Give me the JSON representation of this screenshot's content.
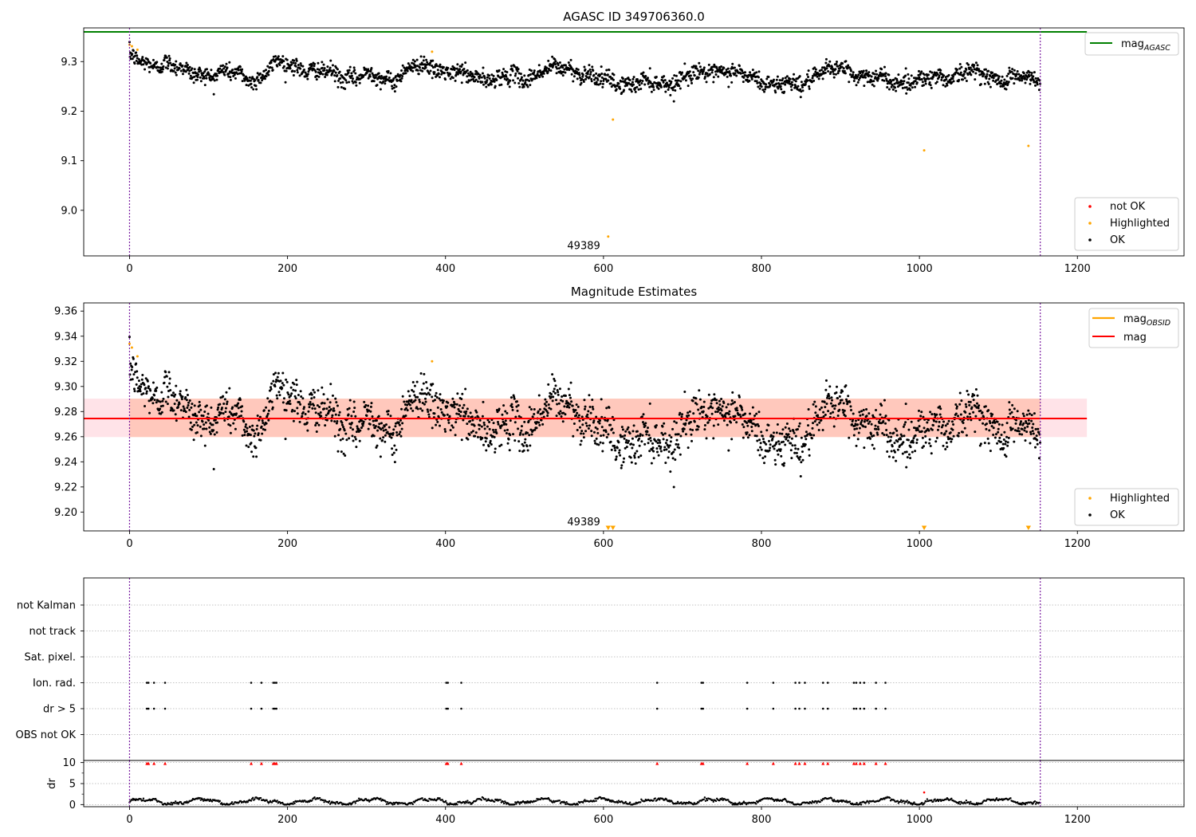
{
  "chart_data": [
    {
      "type": "scatter",
      "title": "AGASC ID 349706360.0",
      "xlim": [
        -58,
        1335
      ],
      "ylim": [
        8.908,
        9.368
      ],
      "xticks": [
        0,
        200,
        400,
        600,
        800,
        1000,
        1200
      ],
      "yticks": [
        9.0,
        9.1,
        9.2,
        9.3
      ],
      "ytick_labels": [
        "9.0",
        "9.1",
        "9.2",
        "9.3"
      ],
      "grid": false,
      "vlines": [
        0,
        1153
      ],
      "obsid_label": {
        "text": "49389",
        "x": 575,
        "y": 8.928
      },
      "agasc_mag": 9.36,
      "agasc_mag_x": [
        -58,
        1212
      ],
      "series": [
        {
          "name": "Highlighted",
          "color": "#ffa500",
          "points": [
            [
              0,
              9.334
            ],
            [
              3,
              9.331
            ],
            [
              10,
              9.324
            ],
            [
              383,
              9.32
            ],
            [
              606,
              8.947
            ],
            [
              612,
              9.183
            ],
            [
              1006,
              9.121
            ],
            [
              1138,
              9.13
            ]
          ]
        }
      ],
      "ok_series": {
        "name": "OK",
        "color": "#000000"
      },
      "legend_markers": {
        "placement": "lower-right",
        "entries": [
          {
            "label": "not OK",
            "color": "#ff0000"
          },
          {
            "label": "Highlighted",
            "color": "#ffa500"
          },
          {
            "label": "OK",
            "color": "#000000"
          }
        ]
      },
      "legend_lines": {
        "placement": "upper-right",
        "entries": [
          {
            "label": "mag",
            "sub": "AGASC",
            "color": "#008000"
          }
        ]
      }
    },
    {
      "type": "scatter",
      "title": "Magnitude Estimates",
      "xlim": [
        -58,
        1335
      ],
      "ylim": [
        9.185,
        9.3665
      ],
      "xticks": [
        0,
        200,
        400,
        600,
        800,
        1000,
        1200
      ],
      "yticks": [
        9.2,
        9.22,
        9.24,
        9.26,
        9.28,
        9.3,
        9.32,
        9.34,
        9.36
      ],
      "ytick_labels": [
        "9.20",
        "9.22",
        "9.24",
        "9.26",
        "9.28",
        "9.30",
        "9.32",
        "9.34",
        "9.36"
      ],
      "grid": false,
      "vlines": [
        0,
        1153
      ],
      "obsid_label": {
        "text": "49389",
        "x": 575,
        "y": 9.19
      },
      "mean_mag": 9.2745,
      "mean_band": [
        9.2597,
        9.2903
      ],
      "obsid_mag": 9.2745,
      "obsid_band": [
        9.2597,
        9.2903
      ],
      "band_x": [
        -58,
        1212
      ],
      "obsid_x": [
        0,
        1153
      ],
      "series": [
        {
          "name": "Highlighted",
          "color": "#ffa500",
          "points": [
            [
              0,
              9.334
            ],
            [
              3,
              9.331
            ],
            [
              10,
              9.324
            ],
            [
              383,
              9.32
            ]
          ]
        }
      ],
      "off_scale_markers": [
        606,
        612,
        1006,
        1138
      ],
      "ok_series": {
        "name": "OK",
        "color": "#000000"
      },
      "legend_markers": {
        "placement": "lower-right",
        "entries": [
          {
            "label": "Highlighted",
            "color": "#ffa500"
          },
          {
            "label": "OK",
            "color": "#000000"
          }
        ]
      },
      "legend_lines": {
        "placement": "upper-right",
        "entries": [
          {
            "label": "mag",
            "sub": "OBSID",
            "color": "#ffa500"
          },
          {
            "label": "mag",
            "sub": "",
            "color": "#ff0000"
          }
        ]
      }
    },
    {
      "type": "scatter",
      "title": "",
      "xlim": [
        -58,
        1335
      ],
      "xticks": [
        0,
        200,
        400,
        600,
        800,
        1000,
        1200
      ],
      "vlines": [
        0,
        1153
      ],
      "flag_rows": [
        "not Kalman",
        "not track",
        "Sat. pixel.",
        "Ion. rad.",
        "dr > 5",
        "OBS not OK"
      ],
      "flag_events": [
        22,
        24,
        31,
        45,
        154,
        167,
        182,
        184,
        186,
        401,
        403,
        420,
        668,
        724,
        726,
        782,
        815,
        843,
        848,
        855,
        878,
        884,
        917,
        920,
        925,
        930,
        945,
        957
      ],
      "flag_rows_marked": [
        "Ion. rad.",
        "dr > 5"
      ],
      "dr_ylabel": "dr",
      "dr_ylim": [
        -0.5,
        10.5
      ],
      "dr_yticks": [
        0,
        5,
        10
      ],
      "dr_high_value": 10,
      "dr_outlier": {
        "x": 1006,
        "y": 2.9
      }
    }
  ]
}
